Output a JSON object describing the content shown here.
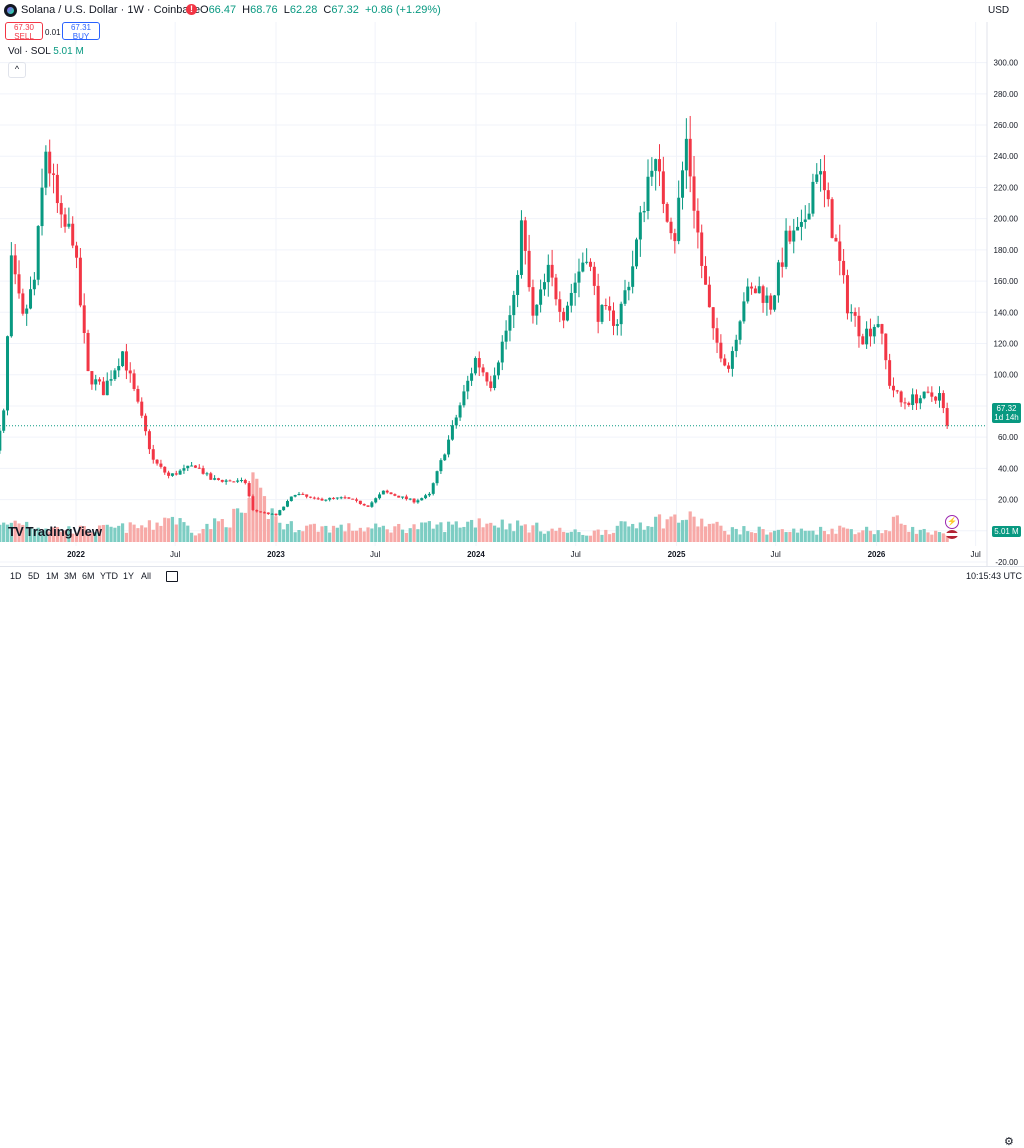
{
  "header": {
    "symbol_title": "Solana / U.S. Dollar · 1W · Coinbase",
    "market_status_icon": "market-closed-icon",
    "ohlc": {
      "o_label": "O",
      "o": "66.47",
      "h_label": "H",
      "h": "68.76",
      "l_label": "L",
      "l": "62.28",
      "c_label": "C",
      "c": "67.32",
      "change": "+0.86 (+1.29%)"
    },
    "currency": "USD"
  },
  "trade": {
    "sell_price": "67.30",
    "sell_label": "SELL",
    "spread": "0.01",
    "buy_price": "67.31",
    "buy_label": "BUY"
  },
  "volume_legend": {
    "label": "Vol · SOL",
    "value": "5.01 M"
  },
  "collapse_icon": "chevron-up-icon",
  "logo_text": "TradingView",
  "logo_mark": "TV",
  "price_label": {
    "value": "67.32",
    "countdown": "1d 14h"
  },
  "volume_label": "5.01 M",
  "time_ranges": [
    "1D",
    "5D",
    "1M",
    "3M",
    "6M",
    "YTD",
    "1Y",
    "All"
  ],
  "calendar_icon": "calendar-icon",
  "clock": "10:15:43 UTC",
  "colors": {
    "up": "#089981",
    "down": "#f23645",
    "vol_up": "#7dcdc3",
    "vol_down": "#f7a9a7",
    "grid": "#f0f3fa"
  },
  "chart_data": {
    "type": "candlestick",
    "title": "Solana / U.S. Dollar · 1W · Coinbase",
    "ylim": [
      -20,
      310
    ],
    "y_ticks": [
      "-20.00",
      "0.00",
      "20.00",
      "40.00",
      "60.00",
      "80.00",
      "100.00",
      "120.00",
      "140.00",
      "160.00",
      "180.00",
      "200.00",
      "220.00",
      "240.00",
      "260.00",
      "280.00",
      "300.00"
    ],
    "x_ticks": [
      "2022",
      "Jul",
      "2023",
      "Jul",
      "2024",
      "Jul",
      "2025",
      "Jul",
      "2026",
      "Jul"
    ],
    "x_tick_dates": [
      "2022-01-01",
      "2022-07-01",
      "2023-01-01",
      "2023-07-01",
      "2024-01-01",
      "2024-07-01",
      "2025-01-01",
      "2025-07-01",
      "2026-01-01",
      "2026-07-01"
    ],
    "last_price": 67.32,
    "price_anchors": [
      [
        "2021-08-01",
        38
      ],
      [
        "2021-08-22",
        75
      ],
      [
        "2021-09-05",
        170
      ],
      [
        "2021-09-26",
        135
      ],
      [
        "2021-10-17",
        160
      ],
      [
        "2021-11-07",
        245
      ],
      [
        "2021-12-05",
        195
      ],
      [
        "2021-12-26",
        190
      ],
      [
        "2022-01-23",
        100
      ],
      [
        "2022-02-20",
        90
      ],
      [
        "2022-03-27",
        115
      ],
      [
        "2022-04-24",
        80
      ],
      [
        "2022-05-22",
        45
      ],
      [
        "2022-06-19",
        35
      ],
      [
        "2022-08-07",
        42
      ],
      [
        "2022-09-04",
        33
      ],
      [
        "2022-11-06",
        31
      ],
      [
        "2022-11-20",
        13
      ],
      [
        "2023-01-01",
        10
      ],
      [
        "2023-02-05",
        24
      ],
      [
        "2023-03-12",
        20
      ],
      [
        "2023-05-07",
        21
      ],
      [
        "2023-06-18",
        16
      ],
      [
        "2023-07-16",
        25
      ],
      [
        "2023-09-10",
        19
      ],
      [
        "2023-10-08",
        23
      ],
      [
        "2023-11-12",
        58
      ],
      [
        "2023-12-31",
        110
      ],
      [
        "2024-01-28",
        95
      ],
      [
        "2024-03-10",
        145
      ],
      [
        "2024-03-24",
        195
      ],
      [
        "2024-04-14",
        135
      ],
      [
        "2024-05-12",
        165
      ],
      [
        "2024-06-09",
        140
      ],
      [
        "2024-07-21",
        180
      ],
      [
        "2024-08-11",
        140
      ],
      [
        "2024-09-15",
        135
      ],
      [
        "2024-10-13",
        170
      ],
      [
        "2024-11-17",
        240
      ],
      [
        "2024-12-15",
        205
      ],
      [
        "2024-12-29",
        190
      ],
      [
        "2025-01-19",
        250
      ],
      [
        "2025-02-16",
        170
      ],
      [
        "2025-03-09",
        125
      ],
      [
        "2025-04-06",
        105
      ],
      [
        "2025-05-04",
        150
      ],
      [
        "2025-06-01",
        155
      ],
      [
        "2025-06-22",
        145
      ],
      [
        "2025-07-20",
        185
      ],
      [
        "2025-08-17",
        190
      ],
      [
        "2025-09-14",
        235
      ],
      [
        "2025-10-12",
        195
      ],
      [
        "2025-11-09",
        145
      ],
      [
        "2025-12-07",
        125
      ],
      [
        "2026-01-04",
        135
      ],
      [
        "2026-01-25",
        95
      ],
      [
        "2026-02-15",
        82
      ],
      [
        "2026-03-15",
        85
      ],
      [
        "2026-04-26",
        87
      ],
      [
        "2026-05-10",
        67
      ]
    ],
    "volume_ylim": [
      0,
      42
    ],
    "volume_anchors": [
      [
        "2021-08-01",
        10
      ],
      [
        "2021-09-19",
        16
      ],
      [
        "2021-11-14",
        10
      ],
      [
        "2022-01-23",
        9
      ],
      [
        "2022-05-22",
        12
      ],
      [
        "2022-06-19",
        20
      ],
      [
        "2022-08-07",
        8
      ],
      [
        "2022-11-06",
        22
      ],
      [
        "2022-11-20",
        38
      ],
      [
        "2023-01-15",
        12
      ],
      [
        "2023-06-18",
        10
      ],
      [
        "2023-11-12",
        12
      ],
      [
        "2024-01-07",
        16
      ],
      [
        "2024-03-24",
        12
      ],
      [
        "2024-07-21",
        6
      ],
      [
        "2024-11-17",
        16
      ],
      [
        "2025-01-19",
        18
      ],
      [
        "2025-04-06",
        9
      ],
      [
        "2025-08-17",
        8
      ],
      [
        "2025-11-02",
        10
      ],
      [
        "2026-01-25",
        8
      ],
      [
        "2026-02-08",
        20
      ],
      [
        "2026-03-08",
        9
      ],
      [
        "2026-05-10",
        5
      ]
    ]
  }
}
